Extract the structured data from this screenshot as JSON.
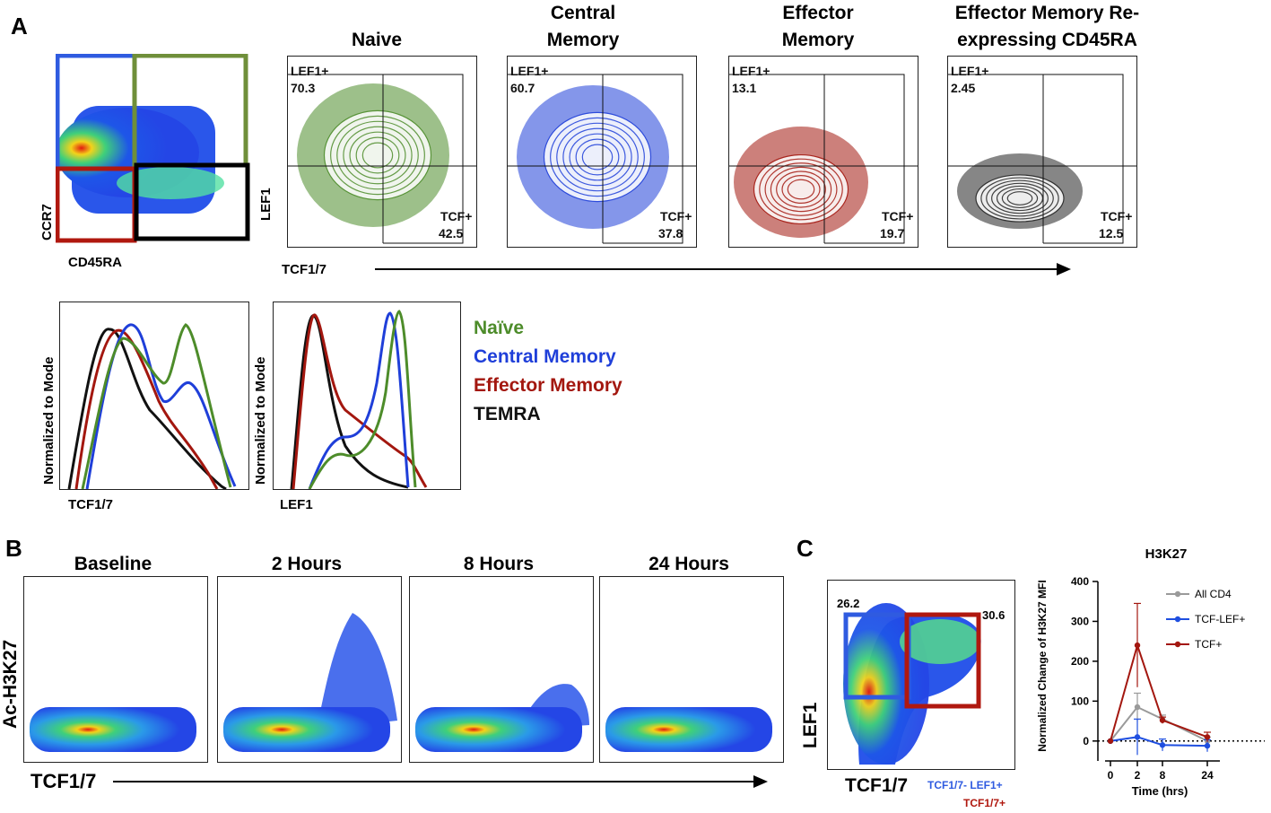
{
  "colors": {
    "naive": "#4d8c2a",
    "central": "#1f3fd9",
    "effector": "#a3170f",
    "temra": "#111111",
    "gray": "#9a9a9a",
    "gate_blue": "#2f5be0",
    "gate_green": "#6f8f3a",
    "gate_red": "#b0180f",
    "gate_black": "#000000"
  },
  "panel_a": {
    "letter": "A",
    "gating": {
      "y_label": "CCR7",
      "x_label": "CD45RA"
    },
    "contours": [
      {
        "title": "Naive",
        "lef_label": "LEF1+",
        "lef_value": "70.3",
        "tcf_label": "TCF+",
        "tcf_value": "42.5",
        "color": "#4d8c2a"
      },
      {
        "title": "Central Memory",
        "lef_label": "LEF1+",
        "lef_value": "60.7",
        "tcf_label": "TCF+",
        "tcf_value": "37.8",
        "color": "#1f3fd9"
      },
      {
        "title": "Effector Memory",
        "lef_label": "LEF1+",
        "lef_value": "13.1",
        "tcf_label": "TCF+",
        "tcf_value": "19.7",
        "color": "#a3170f"
      },
      {
        "title": "Effector Memory Re-expressing CD45RA",
        "lef_label": "LEF1+",
        "lef_value": "2.45",
        "tcf_label": "TCF+",
        "tcf_value": "12.5",
        "color": "#222222"
      }
    ],
    "contour_y_label": "LEF1",
    "contour_x_label": "TCF1/7",
    "hist_y_label": "Normalized to Mode",
    "hist1_x_label": "TCF1/7",
    "hist2_x_label": "LEF1",
    "legend": [
      "Naïve",
      "Central Memory",
      "Effector Memory",
      "TEMRA"
    ]
  },
  "panel_b": {
    "letter": "B",
    "titles": [
      "Baseline",
      "2 Hours",
      "8 Hours",
      "24 Hours"
    ],
    "y_label": "Ac-H3K27",
    "x_label": "TCF1/7"
  },
  "panel_c": {
    "letter": "C",
    "gate_left_value": "26.2",
    "gate_right_value": "30.6",
    "y_label": "LEF1",
    "x_label": "TCF1/7",
    "legend_blue": "TCF1/7- LEF1+",
    "legend_red": "TCF1/7+"
  },
  "chart_data": {
    "type": "line",
    "title": "H3K27",
    "xlabel": "Time (hrs)",
    "ylabel": "Normalized Change of H3K27 MFI",
    "x": [
      0,
      2,
      8,
      24
    ],
    "x_tick_labels": [
      "0",
      "2",
      "8",
      "24"
    ],
    "ylim": [
      -50,
      400
    ],
    "y_ticks": [
      0,
      100,
      200,
      300,
      400
    ],
    "series": [
      {
        "name": "All CD4",
        "color": "#9a9a9a",
        "values": [
          0,
          85,
          55,
          0
        ],
        "errors": [
          0,
          35,
          10,
          10
        ]
      },
      {
        "name": "TCF-LEF+",
        "color": "#1f4fe0",
        "values": [
          0,
          10,
          -10,
          -12
        ],
        "errors": [
          0,
          45,
          15,
          15
        ]
      },
      {
        "name": "TCF+",
        "color": "#a3170f",
        "values": [
          0,
          240,
          52,
          10
        ],
        "errors": [
          0,
          105,
          8,
          12
        ]
      }
    ]
  }
}
